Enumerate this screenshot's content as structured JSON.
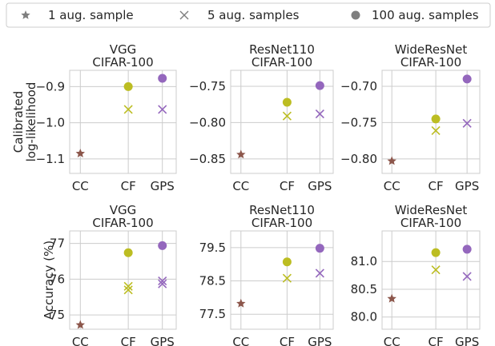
{
  "legend": {
    "entries": [
      {
        "label": "1 aug. sample",
        "marker": "star"
      },
      {
        "label": "5 aug. samples",
        "marker": "x"
      },
      {
        "label": "100 aug. samples",
        "marker": "circle"
      }
    ],
    "placement": "top",
    "marker_color": "#7f7f7f"
  },
  "colors": {
    "CC": "#8c564b",
    "CF": "#bcbd22",
    "GPS": "#9467bd",
    "grid": "#cccccc",
    "axis_text": "#262626"
  },
  "chart_data": [
    {
      "type": "scatter",
      "row": 0,
      "col": 0,
      "title": "VGG\nCIFAR-100",
      "ylabel": "Calibrated\nlog-likelihood",
      "categories": [
        "CC",
        "CF",
        "GPS"
      ],
      "ylim": [
        -1.14,
        -0.855
      ],
      "yticks": [
        -1.1,
        -1.0,
        -0.9
      ],
      "ytick_labels": [
        "−1.1",
        "−1.0",
        "−0.9"
      ],
      "grid": true,
      "series": [
        {
          "name": "1 aug. sample",
          "marker": "star",
          "points": [
            {
              "x": "CC",
              "y": -1.085
            }
          ]
        },
        {
          "name": "5 aug. samples",
          "marker": "x",
          "points": [
            {
              "x": "CF",
              "y": -0.963
            },
            {
              "x": "GPS",
              "y": -0.963
            }
          ]
        },
        {
          "name": "100 aug. samples",
          "marker": "circle",
          "points": [
            {
              "x": "CF",
              "y": -0.9
            },
            {
              "x": "GPS",
              "y": -0.877
            }
          ]
        }
      ]
    },
    {
      "type": "scatter",
      "row": 0,
      "col": 1,
      "title": "ResNet110\nCIFAR-100",
      "ylabel": "",
      "categories": [
        "CC",
        "CF",
        "GPS"
      ],
      "ylim": [
        -0.87,
        -0.728
      ],
      "yticks": [
        -0.85,
        -0.8,
        -0.75
      ],
      "ytick_labels": [
        "−0.85",
        "−0.80",
        "−0.75"
      ],
      "grid": true,
      "series": [
        {
          "name": "1 aug. sample",
          "marker": "star",
          "points": [
            {
              "x": "CC",
              "y": -0.844
            }
          ]
        },
        {
          "name": "5 aug. samples",
          "marker": "x",
          "points": [
            {
              "x": "CF",
              "y": -0.791
            },
            {
              "x": "GPS",
              "y": -0.788
            }
          ]
        },
        {
          "name": "100 aug. samples",
          "marker": "circle",
          "points": [
            {
              "x": "CF",
              "y": -0.772
            },
            {
              "x": "GPS",
              "y": -0.749
            }
          ]
        }
      ]
    },
    {
      "type": "scatter",
      "row": 0,
      "col": 2,
      "title": "WideResNet\nCIFAR-100",
      "ylabel": "",
      "categories": [
        "CC",
        "CF",
        "GPS"
      ],
      "ylim": [
        -0.82,
        -0.678
      ],
      "yticks": [
        -0.8,
        -0.75,
        -0.7
      ],
      "ytick_labels": [
        "−0.80",
        "−0.75",
        "−0.70"
      ],
      "grid": true,
      "series": [
        {
          "name": "1 aug. sample",
          "marker": "star",
          "points": [
            {
              "x": "CC",
              "y": -0.803
            }
          ]
        },
        {
          "name": "5 aug. samples",
          "marker": "x",
          "points": [
            {
              "x": "CF",
              "y": -0.761
            },
            {
              "x": "GPS",
              "y": -0.751
            }
          ]
        },
        {
          "name": "100 aug. samples",
          "marker": "circle",
          "points": [
            {
              "x": "CF",
              "y": -0.745
            },
            {
              "x": "GPS",
              "y": -0.69
            }
          ]
        }
      ]
    },
    {
      "type": "scatter",
      "row": 1,
      "col": 0,
      "title": "VGG\nCIFAR-100",
      "ylabel": "Accuracy (%)",
      "categories": [
        "CC",
        "CF",
        "GPS"
      ],
      "ylim": [
        74.6,
        77.35
      ],
      "yticks": [
        75,
        76,
        77
      ],
      "ytick_labels": [
        "75",
        "76",
        "77"
      ],
      "grid": true,
      "series": [
        {
          "name": "1 aug. sample",
          "marker": "star",
          "points": [
            {
              "x": "CC",
              "y": 74.72
            }
          ]
        },
        {
          "name": "5 aug. samples",
          "marker": "x",
          "points": [
            {
              "x": "CF",
              "y": 75.8
            },
            {
              "x": "CF",
              "y": 75.7
            },
            {
              "x": "GPS",
              "y": 75.95
            },
            {
              "x": "GPS",
              "y": 75.87
            }
          ]
        },
        {
          "name": "100 aug. samples",
          "marker": "circle",
          "points": [
            {
              "x": "CF",
              "y": 76.74
            },
            {
              "x": "GPS",
              "y": 76.94
            }
          ]
        }
      ]
    },
    {
      "type": "scatter",
      "row": 1,
      "col": 1,
      "title": "ResNet110\nCIFAR-100",
      "ylabel": "",
      "categories": [
        "CC",
        "CF",
        "GPS"
      ],
      "ylim": [
        77.05,
        80.0
      ],
      "yticks": [
        77.5,
        78.5,
        79.5
      ],
      "ytick_labels": [
        "77.5",
        "78.5",
        "79.5"
      ],
      "grid": true,
      "series": [
        {
          "name": "1 aug. sample",
          "marker": "star",
          "points": [
            {
              "x": "CC",
              "y": 77.82
            }
          ]
        },
        {
          "name": "5 aug. samples",
          "marker": "x",
          "points": [
            {
              "x": "CF",
              "y": 78.58
            },
            {
              "x": "GPS",
              "y": 78.73
            }
          ]
        },
        {
          "name": "100 aug. samples",
          "marker": "circle",
          "points": [
            {
              "x": "CF",
              "y": 79.07
            },
            {
              "x": "GPS",
              "y": 79.48
            }
          ]
        }
      ]
    },
    {
      "type": "scatter",
      "row": 1,
      "col": 2,
      "title": "WideResNet\nCIFAR-100",
      "ylabel": "",
      "categories": [
        "CC",
        "CF",
        "GPS"
      ],
      "ylim": [
        79.78,
        81.55
      ],
      "yticks": [
        80.0,
        80.5,
        81.0
      ],
      "ytick_labels": [
        "80.0",
        "80.5",
        "81.0"
      ],
      "grid": true,
      "series": [
        {
          "name": "1 aug. sample",
          "marker": "star",
          "points": [
            {
              "x": "CC",
              "y": 80.33
            }
          ]
        },
        {
          "name": "5 aug. samples",
          "marker": "x",
          "points": [
            {
              "x": "CF",
              "y": 80.85
            },
            {
              "x": "GPS",
              "y": 80.73
            }
          ]
        },
        {
          "name": "100 aug. samples",
          "marker": "circle",
          "points": [
            {
              "x": "CF",
              "y": 81.16
            },
            {
              "x": "GPS",
              "y": 81.22
            }
          ]
        }
      ]
    }
  ]
}
